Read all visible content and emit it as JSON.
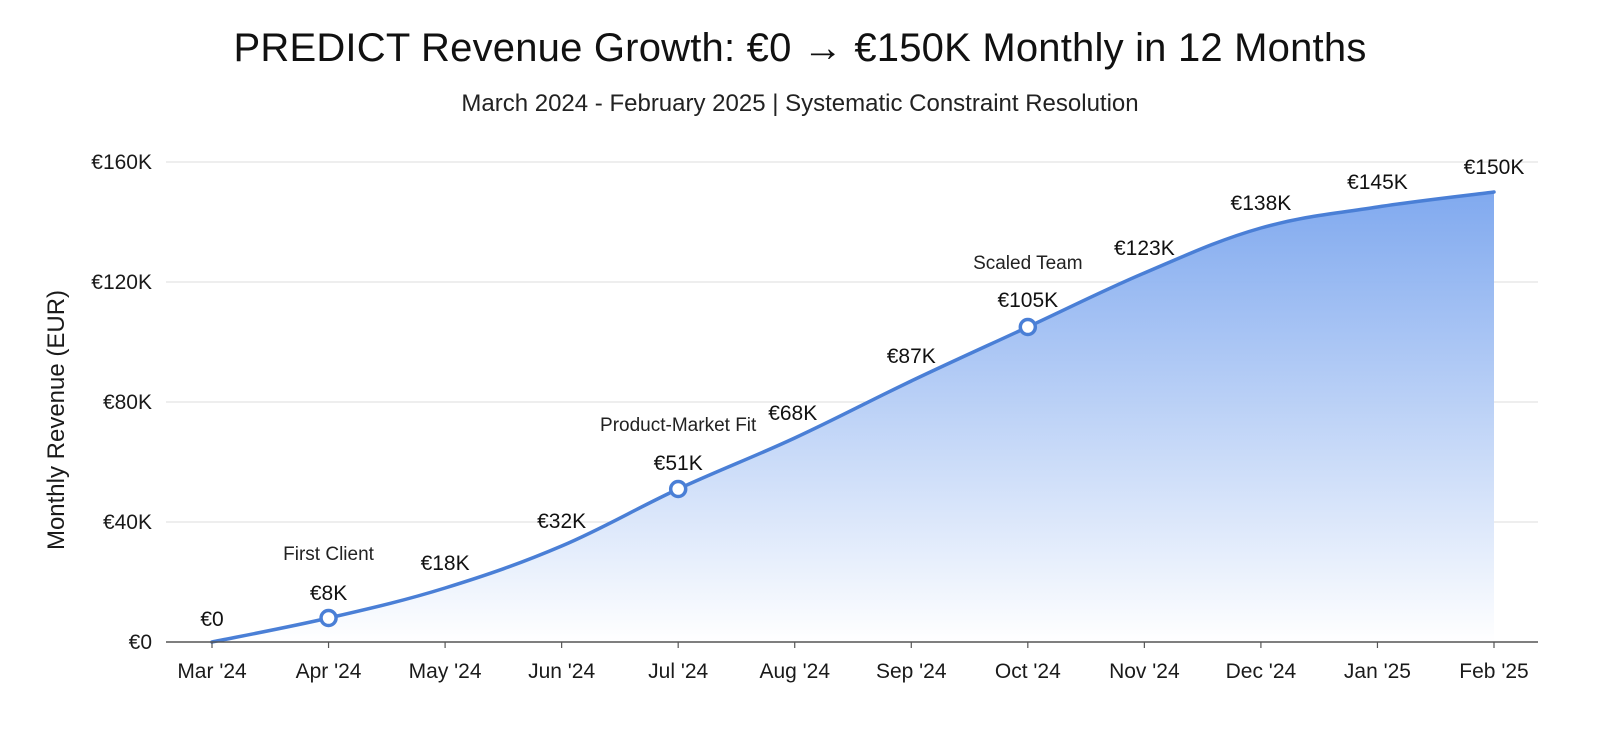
{
  "chart_data": {
    "type": "area",
    "title": "PREDICT Revenue Growth: €0 → €150K Monthly in 12 Months",
    "subtitle": "March 2024 - February 2025 | Systematic Constraint Resolution",
    "xlabel": "",
    "ylabel": "Monthly Revenue (EUR)",
    "categories": [
      "Mar '24",
      "Apr '24",
      "May '24",
      "Jun '24",
      "Jul '24",
      "Aug '24",
      "Sep '24",
      "Oct '24",
      "Nov '24",
      "Dec '24",
      "Jan '25",
      "Feb '25"
    ],
    "series": [
      {
        "name": "Monthly Revenue",
        "values": [
          0,
          8000,
          18000,
          32000,
          51000,
          68000,
          87000,
          105000,
          123000,
          138000,
          145000,
          150000
        ],
        "labels": [
          "€0",
          "€8K",
          "€18K",
          "€32K",
          "€51K",
          "€68K",
          "€87K",
          "€105K",
          "€123K",
          "€138K",
          "€145K",
          "€150K"
        ]
      }
    ],
    "ylim": [
      0,
      160000
    ],
    "yticks": [
      0,
      40000,
      80000,
      120000,
      160000
    ],
    "ytick_labels": [
      "€0",
      "€40K",
      "€80K",
      "€120K",
      "€160K"
    ],
    "grid": true,
    "annotations": [
      {
        "index": 1,
        "text": "First Client"
      },
      {
        "index": 4,
        "text": "Product-Market Fit"
      },
      {
        "index": 7,
        "text": "Scaled Team"
      }
    ],
    "colors": {
      "line": "#4a7fd6",
      "fill_top": "#7aa5ee",
      "fill_bottom": "#ffffff",
      "grid": "#e4e4e4",
      "axis": "#555555"
    }
  }
}
